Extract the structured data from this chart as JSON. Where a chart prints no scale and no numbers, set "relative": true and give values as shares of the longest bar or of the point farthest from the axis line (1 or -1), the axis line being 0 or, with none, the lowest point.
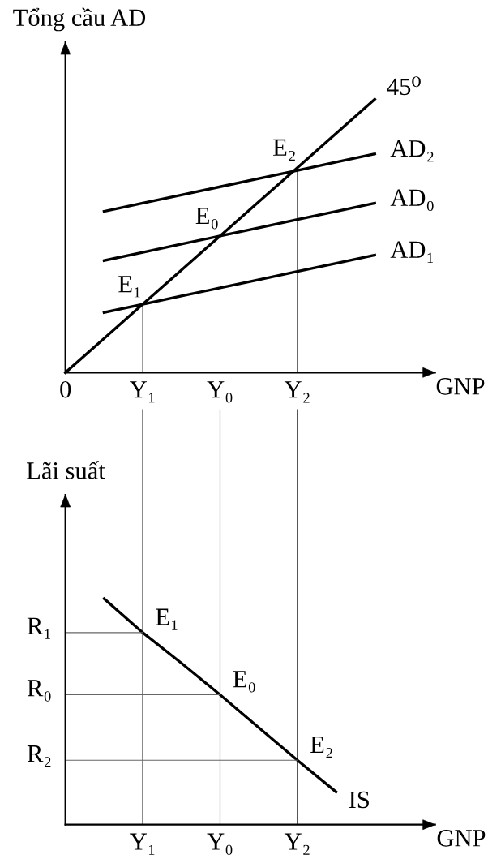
{
  "chart_data": [
    {
      "type": "line",
      "relative": true,
      "ylabel": "Tổng cầu AD",
      "xlabel": "GNP",
      "categories": [
        "0",
        null,
        "Y₁",
        null,
        "Y₀",
        null,
        "Y₂",
        null,
        null
      ],
      "series": [
        {
          "name": "45⁰",
          "color": "#000000",
          "values": [
            0,
            0.125,
            0.25,
            0.375,
            0.5,
            0.625,
            0.75,
            0.875,
            1
          ]
        },
        {
          "name": "AD₂",
          "color": "#000000",
          "values": [
            null,
            0.59,
            0.62,
            0.65,
            0.68,
            0.71,
            0.74,
            0.77,
            0.8
          ]
        },
        {
          "name": "AD₀",
          "color": "#000000",
          "values": [
            null,
            0.41,
            0.44,
            0.47,
            0.5,
            0.53,
            0.56,
            0.59,
            0.62
          ]
        },
        {
          "name": "AD₁",
          "color": "#000000",
          "values": [
            null,
            0.22,
            0.25,
            0.28,
            0.31,
            0.34,
            0.37,
            0.4,
            0.43
          ]
        },
        {
          "type": "bar",
          "color": "#000000",
          "values": [
            null,
            null,
            0.25,
            null,
            0.5,
            null,
            0.75,
            null,
            null
          ]
        }
      ],
      "annotations": [
        {
          "text": "E₂",
          "x": "Y₂",
          "y": 0.75
        },
        {
          "text": "E₀",
          "x": "Y₀",
          "y": 0.5
        },
        {
          "text": "E₁",
          "x": "Y₁",
          "y": 0.25
        }
      ]
    },
    {
      "type": "line",
      "relative": true,
      "ylabel": "Lãi suất",
      "xlabel": "GNP",
      "categories": [
        null,
        null,
        "Y₁",
        null,
        "Y₀",
        null,
        "Y₂",
        null,
        null
      ],
      "series": [
        {
          "name": "IS",
          "color": "#000000",
          "values": [
            null,
            1,
            0.85,
            0.715,
            0.575,
            0.43,
            0.285,
            0.145,
            null
          ]
        },
        {
          "name": "R₁",
          "color": "#666666",
          "values": [
            0.85,
            0.85,
            0.85,
            null,
            null,
            null,
            null,
            null,
            null
          ]
        },
        {
          "name": "R₀",
          "color": "#666666",
          "values": [
            0.575,
            0.575,
            0.575,
            0.575,
            0.575,
            null,
            null,
            null,
            null
          ]
        },
        {
          "name": "R₂",
          "color": "#666666",
          "values": [
            0.285,
            0.285,
            0.285,
            0.285,
            0.285,
            0.285,
            0.285,
            null,
            null
          ]
        }
      ],
      "ref_lines": [
        {
          "axis": "x",
          "value": "Y₁",
          "color": "#000000"
        },
        {
          "axis": "x",
          "value": "Y₀",
          "color": "#000000"
        },
        {
          "axis": "x",
          "value": "Y₂",
          "color": "#000000"
        }
      ],
      "annotations": [
        {
          "text": "E₁",
          "x": "Y₁",
          "y": 0.85
        },
        {
          "text": "E₀",
          "x": "Y₀",
          "y": 0.575
        },
        {
          "text": "E₂",
          "x": "Y₂",
          "y": 0.285
        }
      ]
    }
  ]
}
